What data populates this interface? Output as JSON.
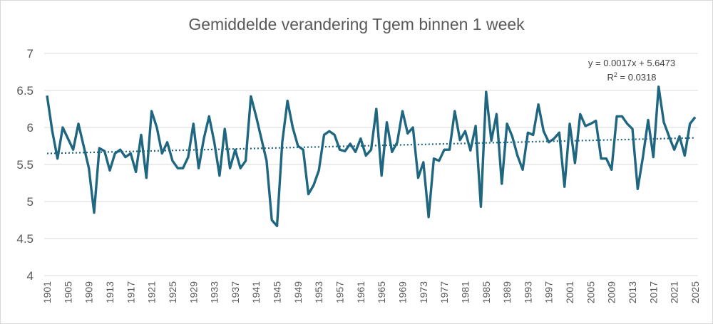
{
  "chart_data": {
    "type": "line",
    "title": "Gemiddelde verandering Tgem binnen 1 week",
    "xlabel": "",
    "ylabel": "",
    "ylim": [
      4,
      7
    ],
    "y_ticks": [
      "4",
      "4.5",
      "5",
      "5.5",
      "6",
      "6.5",
      "7"
    ],
    "grid": "horizontal",
    "series_color": "#1f6681",
    "trend_color": "#1f6681",
    "x_tick_labels": [
      "1901",
      "1905",
      "1909",
      "1913",
      "1917",
      "1921",
      "1925",
      "1929",
      "1933",
      "1937",
      "1941",
      "1945",
      "1949",
      "1953",
      "1957",
      "1961",
      "1965",
      "1969",
      "1973",
      "1977",
      "1981",
      "1985",
      "1989",
      "1993",
      "1997",
      "2001",
      "2005",
      "2009",
      "2013",
      "2017",
      "2021",
      "2025"
    ],
    "series": [
      {
        "name": "Gemiddelde verandering Tgem",
        "x_start": 1901,
        "values": [
          6.43,
          5.95,
          5.58,
          6.0,
          5.85,
          5.7,
          6.05,
          5.75,
          5.45,
          4.85,
          5.72,
          5.68,
          5.42,
          5.65,
          5.7,
          5.6,
          5.65,
          5.4,
          5.9,
          5.32,
          6.22,
          6.0,
          5.65,
          5.8,
          5.55,
          5.45,
          5.45,
          5.6,
          6.05,
          5.45,
          5.85,
          6.15,
          5.8,
          5.35,
          5.98,
          5.45,
          5.7,
          5.45,
          5.55,
          6.42,
          6.15,
          5.85,
          5.55,
          4.75,
          4.67,
          5.8,
          6.36,
          6.0,
          5.75,
          5.7,
          5.1,
          5.22,
          5.42,
          5.9,
          5.95,
          5.9,
          5.7,
          5.68,
          5.78,
          5.67,
          5.85,
          5.62,
          5.7,
          6.25,
          5.35,
          6.07,
          5.67,
          5.8,
          6.22,
          5.92,
          6.0,
          5.32,
          5.53,
          4.79,
          5.58,
          5.55,
          5.7,
          5.7,
          6.22,
          5.83,
          5.95,
          5.69,
          6.02,
          4.93,
          6.48,
          5.82,
          6.18,
          5.24,
          6.05,
          5.88,
          5.62,
          5.43,
          5.93,
          5.9,
          6.31,
          5.95,
          5.8,
          5.85,
          5.93,
          5.2,
          6.05,
          5.52,
          6.18,
          6.02,
          6.05,
          6.09,
          5.58,
          5.58,
          5.43,
          6.15,
          6.15,
          6.05,
          5.98,
          5.17,
          5.6,
          6.1,
          5.6,
          6.55,
          6.07,
          5.88,
          5.7,
          5.88,
          5.62,
          6.05,
          6.14
        ]
      }
    ],
    "trendline": {
      "type": "linear",
      "slope": 0.0017,
      "intercept": 5.6473,
      "r2": 0.0318,
      "equation_label": "y = 0.0017x + 5.6473",
      "r2_prefix": "R",
      "r2_exponent": "2",
      "r2_suffix": " = 0.0318"
    }
  }
}
